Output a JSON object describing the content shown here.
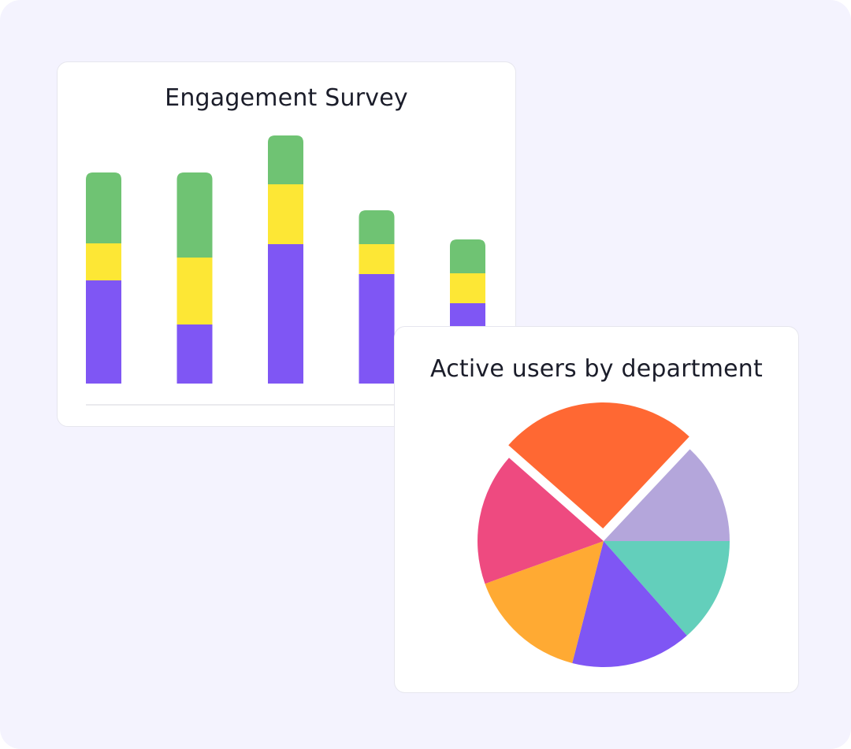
{
  "chart_data": [
    {
      "type": "bar",
      "stacked": true,
      "title": "Engagement Survey",
      "categories": [
        "",
        "",
        "",
        "",
        ""
      ],
      "series": [
        {
          "name": "",
          "color": "#7f56f4",
          "values": [
            131,
            75,
            177,
            139,
            102
          ]
        },
        {
          "name": "",
          "color": "#fde735",
          "values": [
            47,
            85,
            76,
            38,
            38
          ]
        },
        {
          "name": "",
          "color": "#6fc373",
          "values": [
            90,
            108,
            62,
            43,
            43
          ]
        }
      ],
      "ylim": [
        0,
        314
      ],
      "grid": false,
      "xlabel": "",
      "ylabel": ""
    },
    {
      "type": "pie",
      "title": "Active users by department",
      "slices": [
        {
          "label": "",
          "value": 13.5,
          "color": "#63cfbb",
          "exploded": false
        },
        {
          "label": "",
          "value": 15.5,
          "color": "#7f56f4",
          "exploded": false
        },
        {
          "label": "",
          "value": 15.5,
          "color": "#ffaa33",
          "exploded": false
        },
        {
          "label": "",
          "value": 17.0,
          "color": "#ee4a80",
          "exploded": false
        },
        {
          "label": "",
          "value": 25.5,
          "color": "#ff6833",
          "exploded": true
        },
        {
          "label": "",
          "value": 13.0,
          "color": "#b4a6db",
          "exploded": false
        }
      ]
    }
  ]
}
